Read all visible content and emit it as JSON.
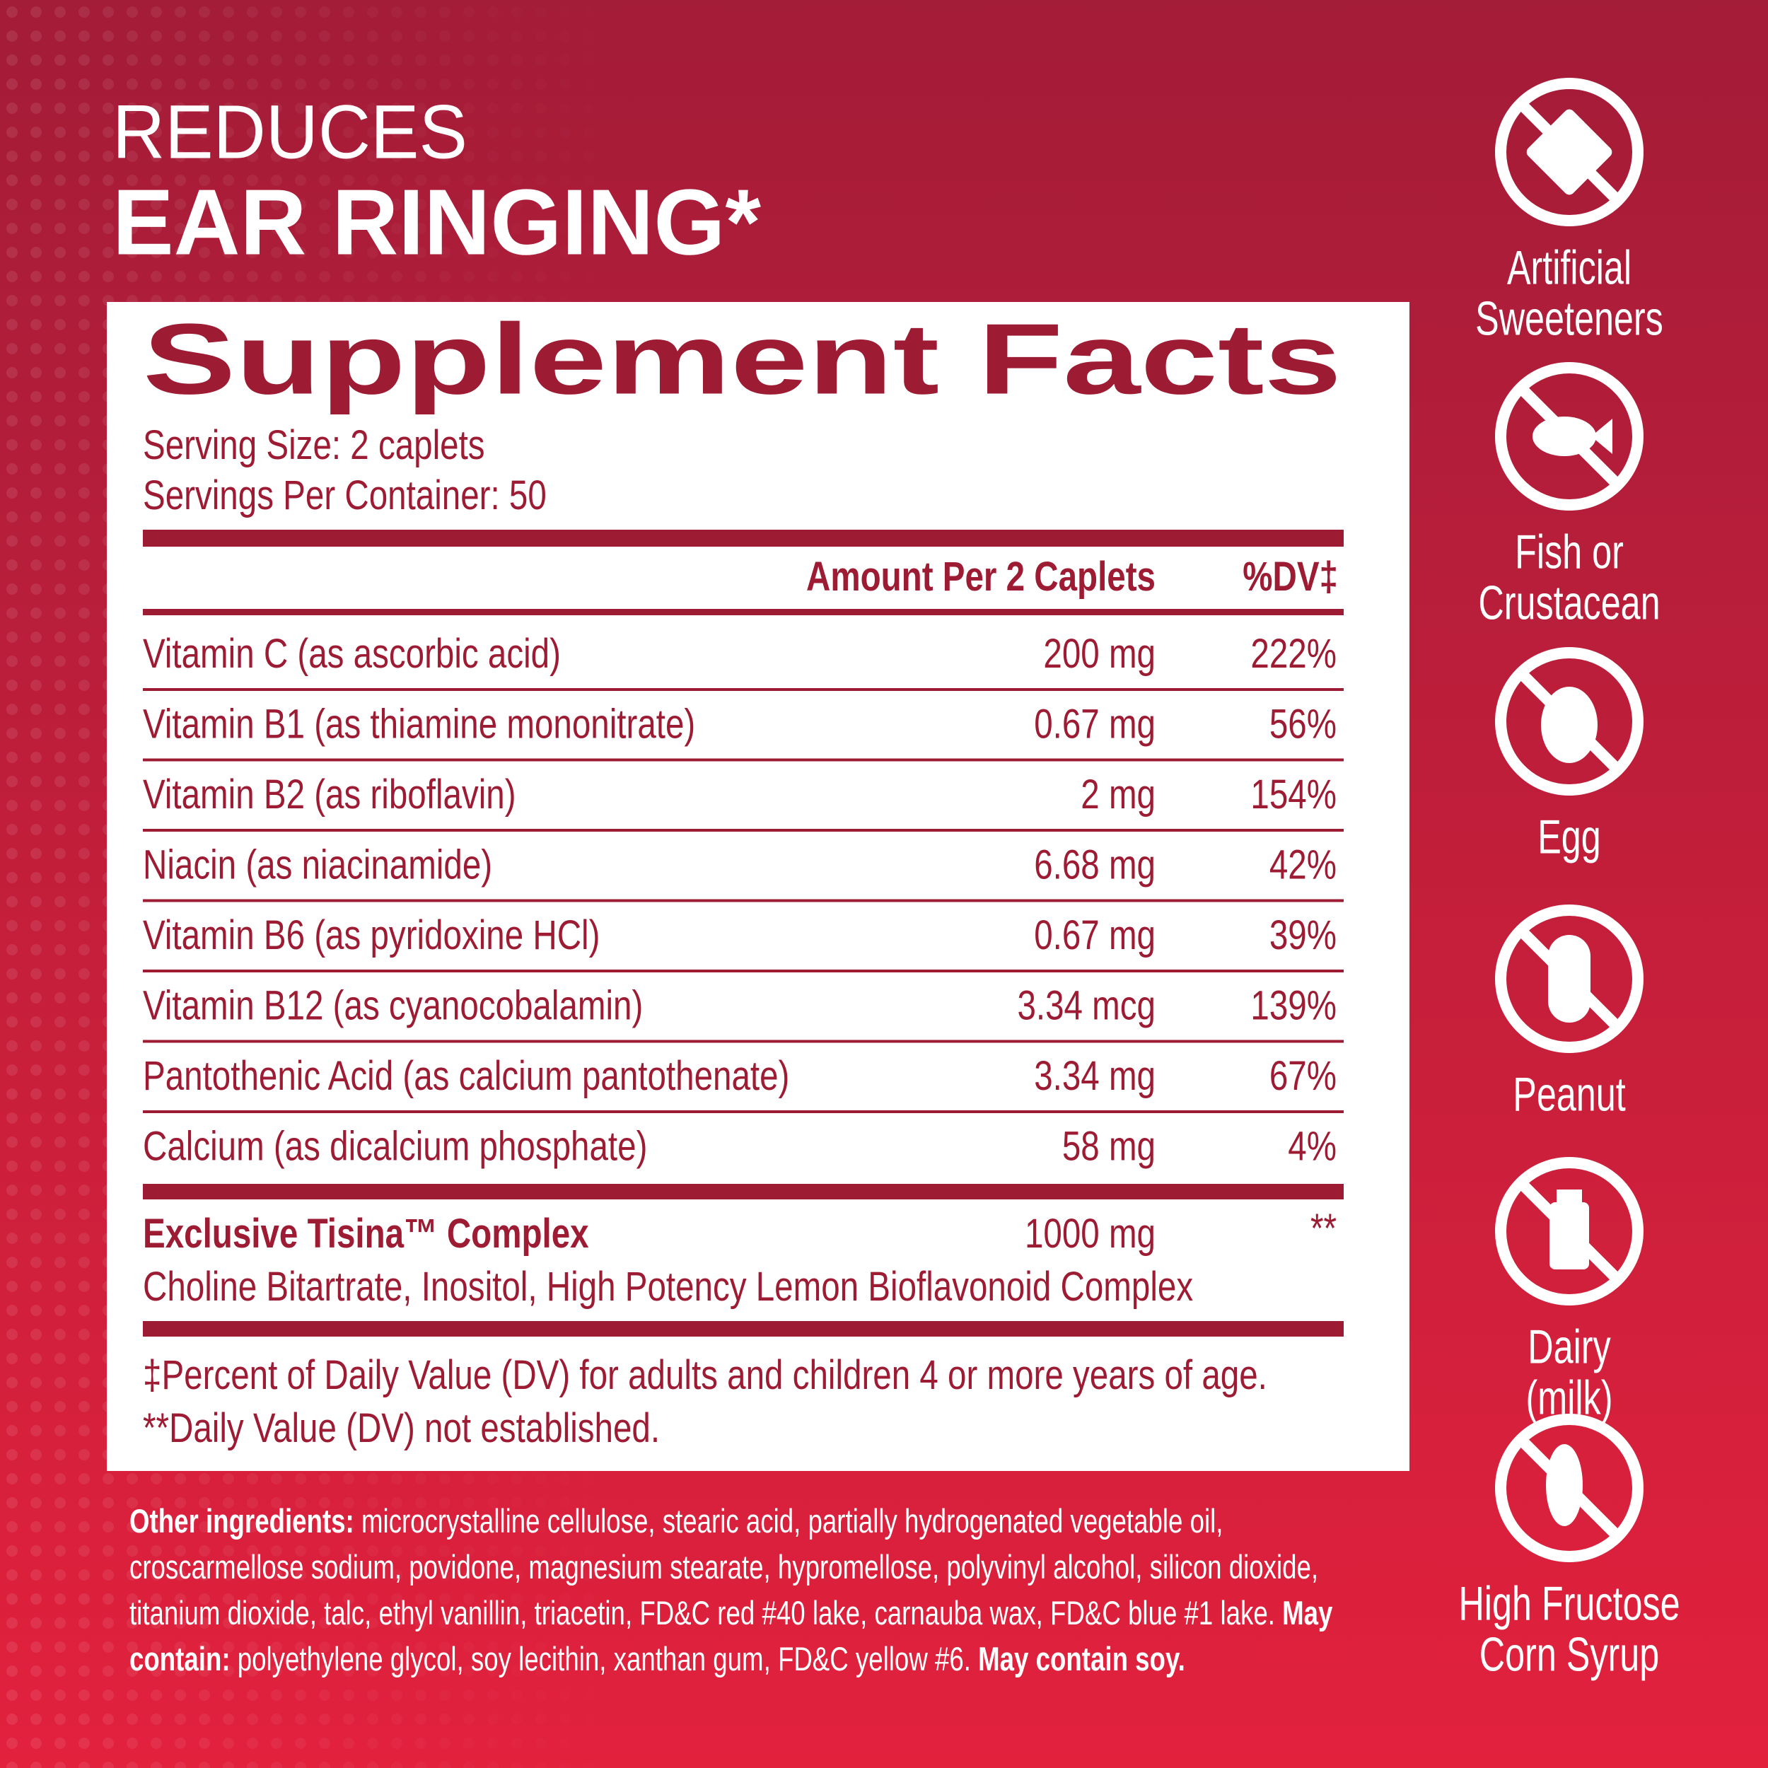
{
  "headline": {
    "line1": "REDUCES",
    "line2": "EAR RINGING*"
  },
  "facts": {
    "title": "Supplement Facts",
    "serving_size": "Serving Size: 2 caplets",
    "servings_per_container": "Servings Per Container: 50",
    "header": {
      "amount": "Amount Per 2 Caplets",
      "dv": "%DV‡"
    },
    "rows": [
      {
        "name": "Vitamin C (as ascorbic acid)",
        "amount": "200 mg",
        "dv": "222%"
      },
      {
        "name": "Vitamin B1 (as thiamine mononitrate)",
        "amount": "0.67 mg",
        "dv": "56%"
      },
      {
        "name": "Vitamin B2 (as riboflavin)",
        "amount": "2 mg",
        "dv": "154%"
      },
      {
        "name": "Niacin (as niacinamide)",
        "amount": "6.68 mg",
        "dv": "42%"
      },
      {
        "name": "Vitamin B6 (as pyridoxine HCl)",
        "amount": "0.67 mg",
        "dv": "39%"
      },
      {
        "name": "Vitamin B12 (as cyanocobalamin)",
        "amount": "3.34 mcg",
        "dv": "139%"
      },
      {
        "name": "Pantothenic Acid (as calcium pantothenate)",
        "amount": "3.34 mg",
        "dv": "67%"
      },
      {
        "name": "Calcium (as dicalcium phosphate)",
        "amount": "58 mg",
        "dv": "4%"
      }
    ],
    "complex": {
      "name": "Exclusive Tisina™ Complex",
      "amount": "1000 mg",
      "dv": "**",
      "ingredients": "Choline Bitartrate, Inositol, High Potency Lemon Bioflavonoid Complex"
    },
    "footnotes": [
      "‡Percent of Daily Value (DV) for adults and children 4 or more years of age.",
      "**Daily Value (DV) not established."
    ]
  },
  "other_ingredients": [
    {
      "text": "Other ingredients:",
      "bold": true
    },
    {
      "text": " microcrystalline cellulose, stearic acid, partially hydrogenated vegetable oil, croscarmellose sodium, povidone, magnesium stearate, hypromellose, polyvinyl alcohol, silicon dioxide, titanium dioxide, talc, ethyl vanillin, triacetin, FD&C red #40 lake, carnauba wax, FD&C blue #1 lake. ",
      "bold": false
    },
    {
      "text": "May contain:",
      "bold": true
    },
    {
      "text": " polyethylene glycol, soy lecithin, xanthan gum, FD&C yellow #6. ",
      "bold": false
    },
    {
      "text": "May contain soy.",
      "bold": true
    }
  ],
  "free_from": [
    {
      "lines": [
        "Artificial",
        "Sweeteners"
      ]
    },
    {
      "lines": [
        "Fish or",
        "Crustacean"
      ]
    },
    {
      "lines": [
        "Egg"
      ]
    },
    {
      "lines": [
        "Peanut"
      ]
    },
    {
      "lines": [
        "Dairy",
        "(milk)"
      ]
    },
    {
      "lines": [
        "High Fructose",
        "Corn Syrup"
      ]
    }
  ]
}
